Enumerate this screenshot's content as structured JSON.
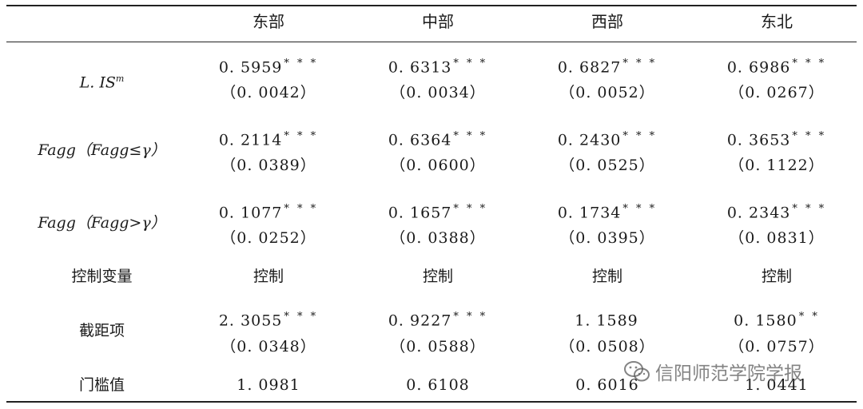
{
  "columns": [
    "东部",
    "中部",
    "西部",
    "东北"
  ],
  "rows": [
    {
      "label_main": "L. IS",
      "label_sup": "m",
      "values": [
        "0. 5959",
        "0. 6313",
        "0. 6827",
        "0. 6986"
      ],
      "stars": [
        "* * *",
        "* * *",
        "* * *",
        "* * *"
      ],
      "se": [
        "（0. 0042）",
        "（0. 0034）",
        "（0. 0052）",
        "（0. 0267）"
      ]
    },
    {
      "label": "Fagg（Fagg≤γ）",
      "values": [
        "0. 2114",
        "0. 6364",
        "0. 2430",
        "0. 3653"
      ],
      "stars": [
        "* * *",
        "* * *",
        "* * *",
        "* * *"
      ],
      "se": [
        "（0. 0389）",
        "（0. 0600）",
        "（0. 0525）",
        "（0. 1122）"
      ]
    },
    {
      "label": "Fagg（Fagg>γ）",
      "values": [
        "0. 1077",
        "0. 1657",
        "0. 1734",
        "0. 2343"
      ],
      "stars": [
        "* * *",
        "* * *",
        "* * *",
        "* * *"
      ],
      "se": [
        "（0. 0252）",
        "（0. 0388）",
        "（0. 0395）",
        "（0. 0831）"
      ]
    },
    {
      "label": "控制变量",
      "values": [
        "控制",
        "控制",
        "控制",
        "控制"
      ]
    },
    {
      "label": "截距项",
      "values": [
        "2. 3055",
        "0. 9227",
        "1. 1589",
        "0. 1580"
      ],
      "stars": [
        "* * *",
        "* * *",
        "",
        "* *"
      ],
      "se": [
        "（0. 0348）",
        "（0. 0588）",
        "（0. 0508）",
        "（0. 0757）"
      ]
    },
    {
      "label": "门槛值",
      "values": [
        "1. 0981",
        "0. 6108",
        "0. 6016",
        "1. 0441"
      ]
    }
  ],
  "watermark": {
    "text": "信阳师范学院学报",
    "icon": "wechat-icon"
  }
}
